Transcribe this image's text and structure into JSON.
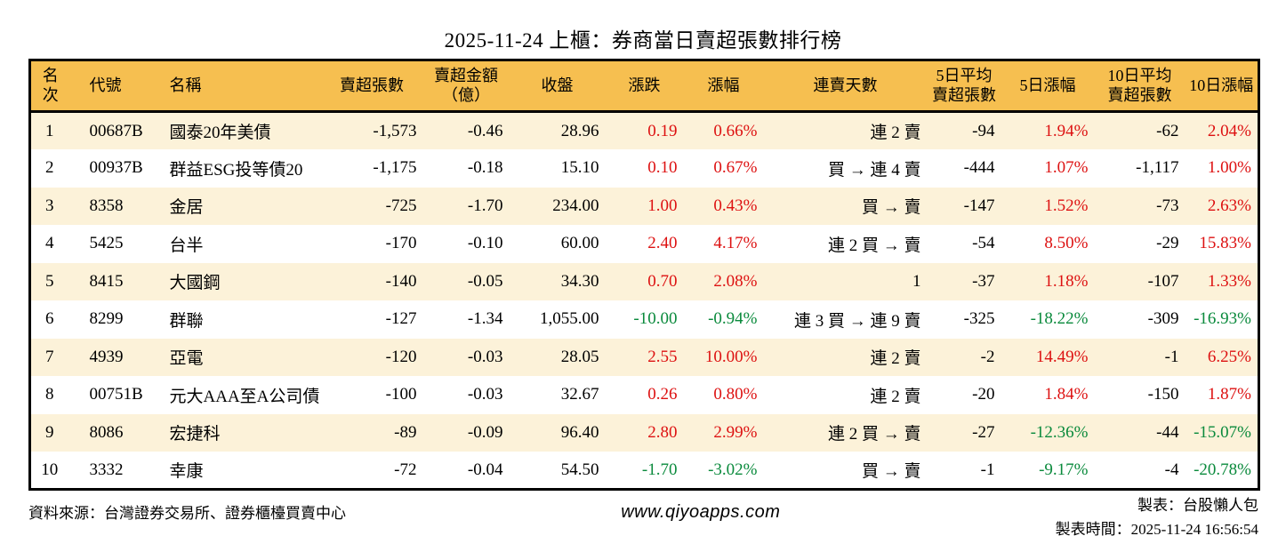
{
  "title": "2025-11-24 上櫃：券商當日賣超張數排行榜",
  "colors": {
    "up": "#dd1111",
    "down": "#0a8a3c",
    "header_bg": "#f6bf50",
    "stripe_bg": "#fcf2d9",
    "border": "#000000"
  },
  "table": {
    "headers": [
      "名次",
      "代號",
      "名稱",
      "賣超張數",
      "賣超金額\n（億）",
      "收盤",
      "漲跌",
      "漲幅",
      "連賣天數",
      "5日平均\n賣超張數",
      "5日漲幅",
      "10日平均\n賣超張數",
      "10日漲幅"
    ],
    "columns": [
      {
        "key": "rank",
        "align": "center"
      },
      {
        "key": "code",
        "align": "left"
      },
      {
        "key": "name",
        "align": "left"
      },
      {
        "key": "sell_volume",
        "align": "right"
      },
      {
        "key": "sell_amount",
        "align": "right"
      },
      {
        "key": "close",
        "align": "right"
      },
      {
        "key": "change",
        "align": "right",
        "signColor": true
      },
      {
        "key": "change_pct",
        "align": "right",
        "signColor": true
      },
      {
        "key": "streak",
        "align": "right"
      },
      {
        "key": "avg5",
        "align": "right"
      },
      {
        "key": "pct5",
        "align": "right",
        "signColor": true
      },
      {
        "key": "avg10",
        "align": "right"
      },
      {
        "key": "pct10",
        "align": "right",
        "signColor": true
      }
    ],
    "rows": [
      {
        "rank": "1",
        "code": "00687B",
        "name": "國泰20年美債",
        "sell_volume": "-1,573",
        "sell_amount": "-0.46",
        "close": "28.96",
        "change": "0.19",
        "change_pct": "0.66%",
        "streak": "連 2 賣",
        "avg5": "-94",
        "pct5": "1.94%",
        "avg10": "-62",
        "pct10": "2.04%"
      },
      {
        "rank": "2",
        "code": "00937B",
        "name": "群益ESG投等債20",
        "sell_volume": "-1,175",
        "sell_amount": "-0.18",
        "close": "15.10",
        "change": "0.10",
        "change_pct": "0.67%",
        "streak": "買 → 連 4 賣",
        "avg5": "-444",
        "pct5": "1.07%",
        "avg10": "-1,117",
        "pct10": "1.00%"
      },
      {
        "rank": "3",
        "code": "8358",
        "name": "金居",
        "sell_volume": "-725",
        "sell_amount": "-1.70",
        "close": "234.00",
        "change": "1.00",
        "change_pct": "0.43%",
        "streak": "買 → 賣",
        "avg5": "-147",
        "pct5": "1.52%",
        "avg10": "-73",
        "pct10": "2.63%"
      },
      {
        "rank": "4",
        "code": "5425",
        "name": "台半",
        "sell_volume": "-170",
        "sell_amount": "-0.10",
        "close": "60.00",
        "change": "2.40",
        "change_pct": "4.17%",
        "streak": "連 2 買 → 賣",
        "avg5": "-54",
        "pct5": "8.50%",
        "avg10": "-29",
        "pct10": "15.83%"
      },
      {
        "rank": "5",
        "code": "8415",
        "name": "大國鋼",
        "sell_volume": "-140",
        "sell_amount": "-0.05",
        "close": "34.30",
        "change": "0.70",
        "change_pct": "2.08%",
        "streak": "1",
        "avg5": "-37",
        "pct5": "1.18%",
        "avg10": "-107",
        "pct10": "1.33%"
      },
      {
        "rank": "6",
        "code": "8299",
        "name": "群聯",
        "sell_volume": "-127",
        "sell_amount": "-1.34",
        "close": "1,055.00",
        "change": "-10.00",
        "change_pct": "-0.94%",
        "streak": "連 3 買 → 連 9 賣",
        "avg5": "-325",
        "pct5": "-18.22%",
        "avg10": "-309",
        "pct10": "-16.93%"
      },
      {
        "rank": "7",
        "code": "4939",
        "name": "亞電",
        "sell_volume": "-120",
        "sell_amount": "-0.03",
        "close": "28.05",
        "change": "2.55",
        "change_pct": "10.00%",
        "streak": "連 2 賣",
        "avg5": "-2",
        "pct5": "14.49%",
        "avg10": "-1",
        "pct10": "6.25%"
      },
      {
        "rank": "8",
        "code": "00751B",
        "name": "元大AAA至A公司債",
        "sell_volume": "-100",
        "sell_amount": "-0.03",
        "close": "32.67",
        "change": "0.26",
        "change_pct": "0.80%",
        "streak": "連 2 賣",
        "avg5": "-20",
        "pct5": "1.84%",
        "avg10": "-150",
        "pct10": "1.87%"
      },
      {
        "rank": "9",
        "code": "8086",
        "name": "宏捷科",
        "sell_volume": "-89",
        "sell_amount": "-0.09",
        "close": "96.40",
        "change": "2.80",
        "change_pct": "2.99%",
        "streak": "連 2 買 → 賣",
        "avg5": "-27",
        "pct5": "-12.36%",
        "avg10": "-44",
        "pct10": "-15.07%"
      },
      {
        "rank": "10",
        "code": "3332",
        "name": "幸康",
        "sell_volume": "-72",
        "sell_amount": "-0.04",
        "close": "54.50",
        "change": "-1.70",
        "change_pct": "-3.02%",
        "streak": "買 → 賣",
        "avg5": "-1",
        "pct5": "-9.17%",
        "avg10": "-4",
        "pct10": "-20.78%"
      }
    ]
  },
  "footer": {
    "source": "資料來源：台灣證券交易所、證券櫃檯買賣中心",
    "site": "www.qiyoapps.com",
    "maker": "製表：台股懶人包",
    "time": "製表時間：2025-11-24 16:56:54"
  }
}
